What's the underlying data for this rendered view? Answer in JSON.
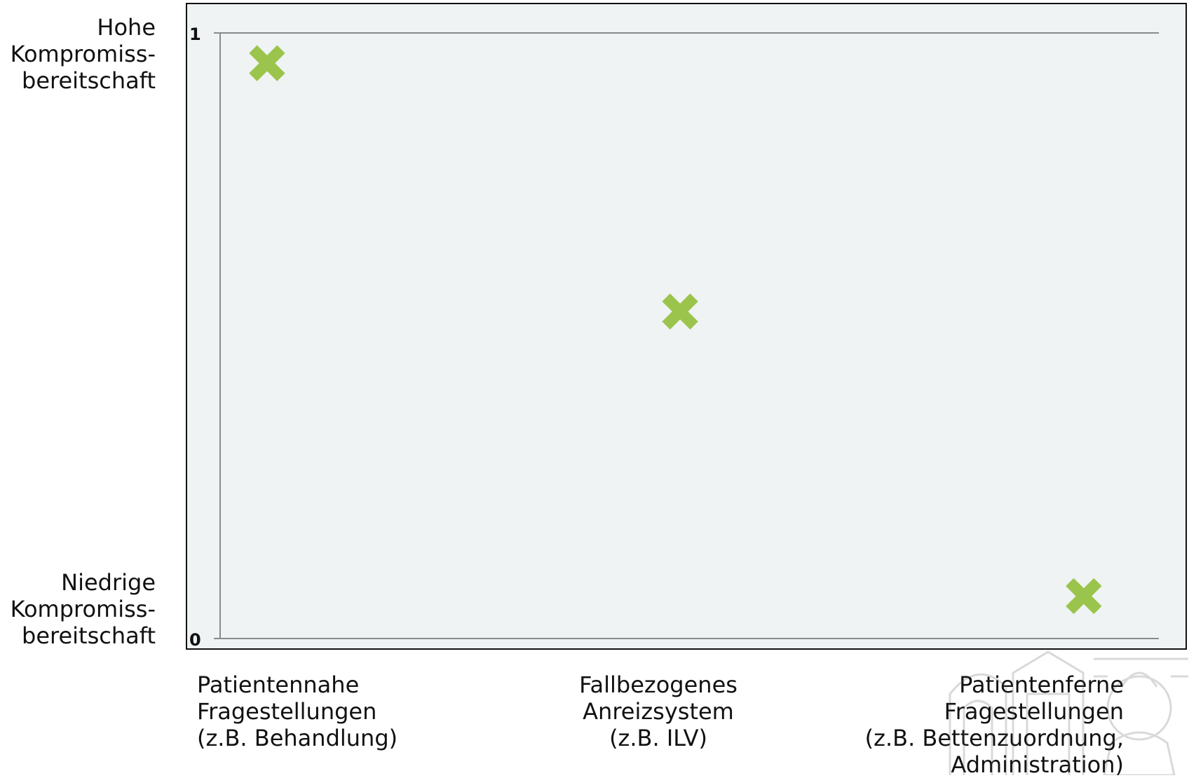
{
  "chart_data": {
    "type": "scatter",
    "title": "",
    "xlabel": "",
    "ylabel": "",
    "ylim": [
      0,
      1
    ],
    "y_ticks": [
      "0",
      "1"
    ],
    "y_end_labels": {
      "high": [
        "Hohe",
        "Kompromiss-",
        "bereitschaft"
      ],
      "low": [
        "Niedrige",
        "Kompromiss-",
        "bereitschaft"
      ]
    },
    "categories": [
      [
        "Patientennahe",
        "Fragestellungen",
        "(z.B. Behandlung)"
      ],
      [
        "Fallbezogenes",
        "Anreizsystem",
        "(z.B. ILV)"
      ],
      [
        "Patientenferne",
        "Fragestellungen",
        "(z.B. Bettenzuordnung,",
        "Administration)"
      ]
    ],
    "points": [
      {
        "x": 0.05,
        "y": 0.95
      },
      {
        "x": 0.49,
        "y": 0.54
      },
      {
        "x": 0.92,
        "y": 0.07
      }
    ],
    "xlim": [
      0,
      1
    ],
    "grid": false,
    "marker": "x",
    "marker_color": "#9bc44c",
    "axis_color": "#8a8a8a"
  }
}
